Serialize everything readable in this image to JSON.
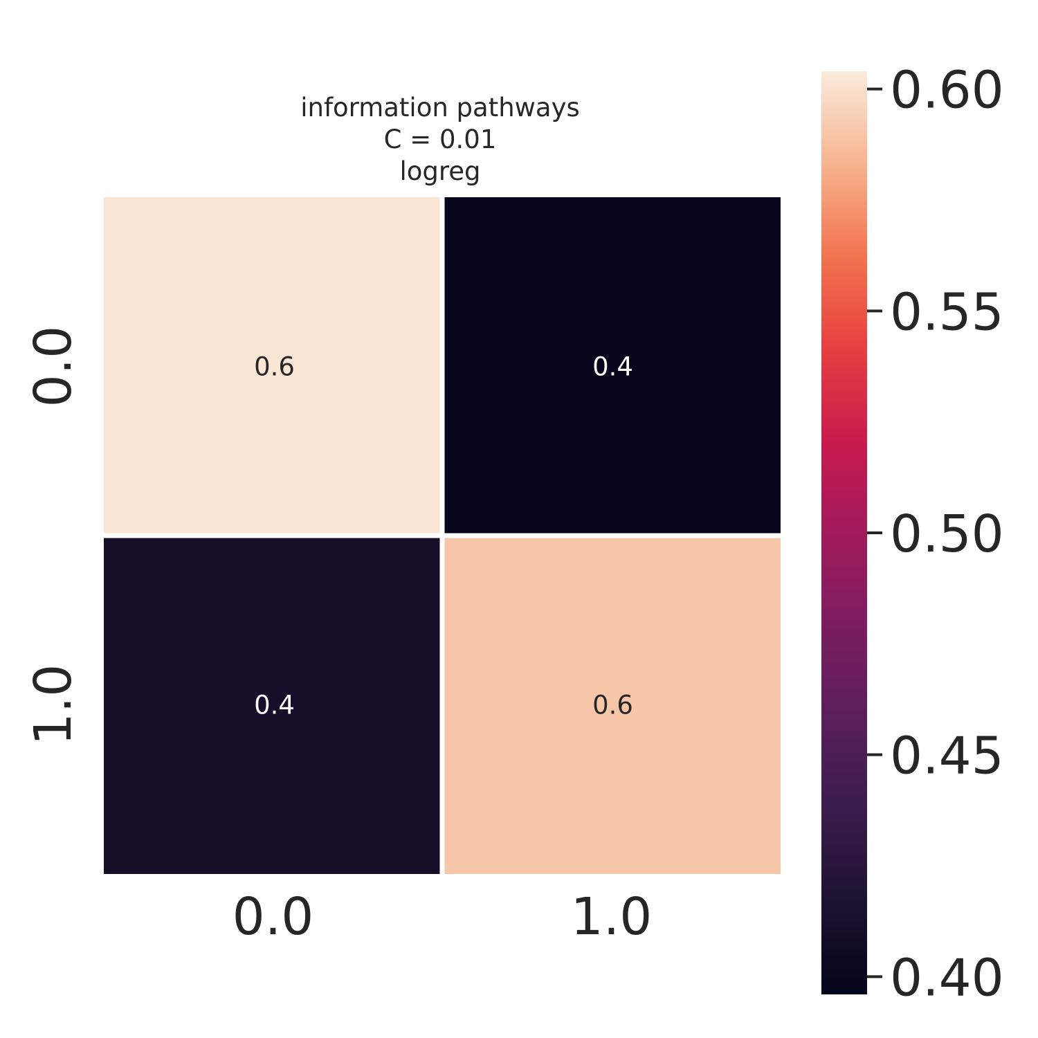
{
  "chart_data": {
    "type": "heatmap",
    "title_lines": [
      "information pathways",
      "C = 0.01",
      "logreg"
    ],
    "x_categories": [
      "0.0",
      "1.0"
    ],
    "y_categories": [
      "0.0",
      "1.0"
    ],
    "values": [
      [
        0.602,
        0.398
      ],
      [
        0.41,
        0.59
      ]
    ],
    "annotations": [
      [
        "0.6",
        "0.4"
      ],
      [
        "0.4",
        "0.6"
      ]
    ],
    "colormap": "rocket",
    "colorbar": {
      "vmin": 0.396,
      "vmax": 0.604,
      "ticks": [
        0.4,
        0.45,
        0.5,
        0.55,
        0.6
      ],
      "tick_labels": [
        "0.40",
        "0.45",
        "0.50",
        "0.55",
        "0.60"
      ]
    },
    "xlabel": "",
    "ylabel": "",
    "grid": false
  }
}
